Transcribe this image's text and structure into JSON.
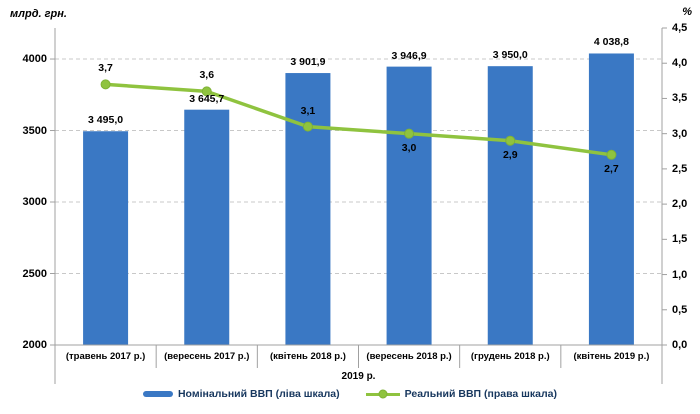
{
  "chart_data": {
    "type": "combo-bar-line",
    "categories": [
      "(травень 2017 р.)",
      "(вересень 2017 р.)",
      "(квітень 2018 р.)",
      "(вересень 2018 р.)",
      "(грудень 2018 р.)",
      "(квітень 2019 р.)"
    ],
    "x_axis_title": "2019 р.",
    "left_axis": {
      "title": "млрд. грн.",
      "min": 2000,
      "max": 4217,
      "ticks": [
        {
          "v": 4000,
          "label": "4000"
        },
        {
          "v": 3500,
          "label": "3500"
        },
        {
          "v": 3000,
          "label": "3000"
        },
        {
          "v": 2500,
          "label": "2500"
        },
        {
          "v": 2000,
          "label": "2000"
        }
      ]
    },
    "right_axis": {
      "title": "%",
      "min": 0,
      "max": 4.5,
      "ticks": [
        {
          "v": 4.5,
          "label": "4,5"
        },
        {
          "v": 4.0,
          "label": "4,0"
        },
        {
          "v": 3.5,
          "label": "3,5"
        },
        {
          "v": 3.0,
          "label": "3,0"
        },
        {
          "v": 2.5,
          "label": "2,5"
        },
        {
          "v": 2.0,
          "label": "2,0"
        },
        {
          "v": 1.5,
          "label": "1,5"
        },
        {
          "v": 1.0,
          "label": "1,0"
        },
        {
          "v": 0.5,
          "label": "0,5"
        },
        {
          "v": 0.0,
          "label": "0,0"
        }
      ]
    },
    "series": [
      {
        "name": "Номінальний ВВП (ліва шкала)",
        "type": "bar",
        "axis": "left",
        "color": "#3A78C4",
        "values": [
          3495.0,
          3645.7,
          3901.9,
          3946.9,
          3950.0,
          4038.8
        ],
        "labels": [
          "3 495,0",
          "3 645,7",
          "3 901,9",
          "3 946,9",
          "3 950,0",
          "4 038,8"
        ]
      },
      {
        "name": "Реальний ВВП (права шкала)",
        "type": "line",
        "axis": "right",
        "color": "#8FC33F",
        "marker_border": "#7FB236",
        "values": [
          3.7,
          3.6,
          3.1,
          3.0,
          2.9,
          2.7
        ],
        "labels": [
          "3,7",
          "3,6",
          "3,1",
          "3,0",
          "2,9",
          "2,7"
        ],
        "label_position": [
          "above",
          "above",
          "above",
          "below",
          "below",
          "below"
        ]
      }
    ],
    "grid": {
      "style": "dashed",
      "color": "#C8C8C8",
      "orientation": "horizontal"
    },
    "axis_line_color": "#A0A0A0"
  },
  "legend": {
    "items": [
      {
        "label": "Номінальний ВВП (ліва шкала)",
        "swatch": "bar",
        "color": "#3A78C4"
      },
      {
        "label": "Реальний ВВП (права шкала)",
        "swatch": "line-marker",
        "color": "#8FC33F"
      }
    ]
  }
}
